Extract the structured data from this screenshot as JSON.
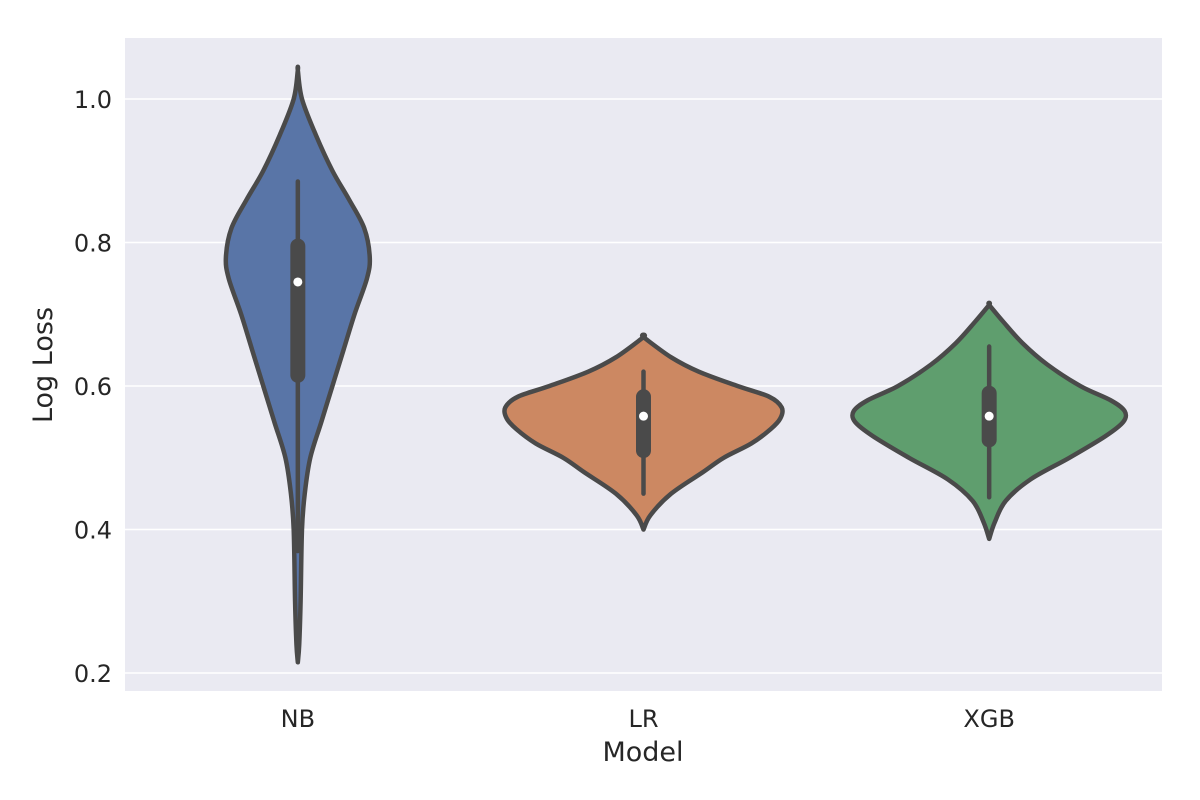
{
  "chart_data": {
    "type": "violin",
    "xlabel": "Model",
    "ylabel": "Log Loss",
    "categories": [
      "NB",
      "LR",
      "XGB"
    ],
    "ylim": [
      0.175,
      1.085
    ],
    "yticks": [
      0.2,
      0.4,
      0.6,
      0.8,
      1.0
    ],
    "ytick_labels": [
      "0.2",
      "0.4",
      "0.6",
      "0.8",
      "1.0"
    ],
    "grid": true,
    "colors": {
      "background": "#eaeaf2",
      "grid": "#ffffff",
      "outline": "#4a4a4a",
      "median": "#ffffff"
    },
    "series": [
      {
        "category": "NB",
        "color": "#5975a7",
        "min": 0.37,
        "q1": 0.615,
        "median": 0.745,
        "q3": 0.795,
        "max": 0.885,
        "density_range": [
          0.215,
          1.04
        ],
        "density": [
          [
            0.215,
            0.0
          ],
          [
            0.24,
            0.01
          ],
          [
            0.3,
            0.02
          ],
          [
            0.4,
            0.03
          ],
          [
            0.45,
            0.05
          ],
          [
            0.5,
            0.09
          ],
          [
            0.55,
            0.17
          ],
          [
            0.6,
            0.25
          ],
          [
            0.65,
            0.33
          ],
          [
            0.7,
            0.41
          ],
          [
            0.75,
            0.5
          ],
          [
            0.78,
            0.52
          ],
          [
            0.82,
            0.48
          ],
          [
            0.86,
            0.37
          ],
          [
            0.9,
            0.25
          ],
          [
            0.95,
            0.13
          ],
          [
            1.0,
            0.03
          ],
          [
            1.04,
            0.0
          ]
        ]
      },
      {
        "category": "LR",
        "color": "#cc8862",
        "min": 0.45,
        "q1": 0.51,
        "median": 0.558,
        "q3": 0.585,
        "max": 0.62,
        "density_range": [
          0.4,
          0.668
        ],
        "density": [
          [
            0.4,
            0.0
          ],
          [
            0.42,
            0.05
          ],
          [
            0.45,
            0.2
          ],
          [
            0.48,
            0.43
          ],
          [
            0.5,
            0.58
          ],
          [
            0.52,
            0.78
          ],
          [
            0.54,
            0.92
          ],
          [
            0.555,
            0.99
          ],
          [
            0.57,
            1.0
          ],
          [
            0.585,
            0.91
          ],
          [
            0.6,
            0.68
          ],
          [
            0.62,
            0.4
          ],
          [
            0.64,
            0.2
          ],
          [
            0.668,
            0.0
          ]
        ]
      },
      {
        "category": "XGB",
        "color": "#5f9e6e",
        "min": 0.445,
        "q1": 0.525,
        "median": 0.558,
        "q3": 0.59,
        "max": 0.655,
        "density_range": [
          0.387,
          0.713
        ],
        "density": [
          [
            0.387,
            0.0
          ],
          [
            0.41,
            0.04
          ],
          [
            0.44,
            0.12
          ],
          [
            0.47,
            0.3
          ],
          [
            0.5,
            0.58
          ],
          [
            0.53,
            0.84
          ],
          [
            0.55,
            0.97
          ],
          [
            0.565,
            0.98
          ],
          [
            0.58,
            0.88
          ],
          [
            0.6,
            0.66
          ],
          [
            0.63,
            0.42
          ],
          [
            0.66,
            0.24
          ],
          [
            0.69,
            0.1
          ],
          [
            0.713,
            0.0
          ]
        ]
      }
    ]
  }
}
